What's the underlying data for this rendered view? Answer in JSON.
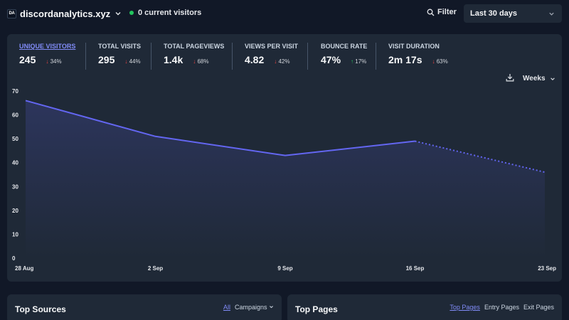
{
  "header": {
    "favicon_text": "DA",
    "site_name": "discordanalytics.xyz",
    "current_visitors": "0 current visitors",
    "filter_label": "Filter",
    "period_label": "Last 30 days",
    "status_color": "#22c55e"
  },
  "stats": [
    {
      "label": "UNIQUE VISITORS",
      "value": "245",
      "change": "34%",
      "direction": "down",
      "active": true
    },
    {
      "label": "TOTAL VISITS",
      "value": "295",
      "change": "44%",
      "direction": "down",
      "active": false
    },
    {
      "label": "TOTAL PAGEVIEWS",
      "value": "1.4k",
      "change": "68%",
      "direction": "down",
      "active": false
    },
    {
      "label": "VIEWS PER VISIT",
      "value": "4.82",
      "change": "42%",
      "direction": "down",
      "active": false
    },
    {
      "label": "BOUNCE RATE",
      "value": "47%",
      "change": "17%",
      "direction": "up",
      "active": false
    },
    {
      "label": "VISIT DURATION",
      "value": "2m 17s",
      "change": "63%",
      "direction": "down",
      "active": false
    }
  ],
  "arrows": {
    "down": "↓",
    "up": "↑"
  },
  "chart_controls": {
    "interval_label": "Weeks",
    "download_icon": "download-icon"
  },
  "chart_data": {
    "type": "line",
    "title": "",
    "xlabel": "",
    "ylabel": "",
    "categories": [
      "28 Aug",
      "2 Sep",
      "9 Sep",
      "16 Sep",
      "23 Sep"
    ],
    "series": [
      {
        "values": [
          66,
          51,
          43,
          49,
          36
        ],
        "incomplete_last_segment": true
      }
    ],
    "yticks": [
      0,
      10,
      20,
      30,
      40,
      50,
      60,
      70
    ],
    "ylim": [
      0,
      70
    ],
    "grid": false,
    "line_color": "#6366f1"
  },
  "panels": {
    "sources": {
      "title": "Top Sources",
      "tabs": [
        {
          "label": "All",
          "active": true
        },
        {
          "label": "Campaigns",
          "active": false
        }
      ]
    },
    "pages": {
      "title": "Top Pages",
      "tabs": [
        {
          "label": "Top Pages",
          "active": true
        },
        {
          "label": "Entry Pages",
          "active": false
        },
        {
          "label": "Exit Pages",
          "active": false
        }
      ]
    }
  }
}
